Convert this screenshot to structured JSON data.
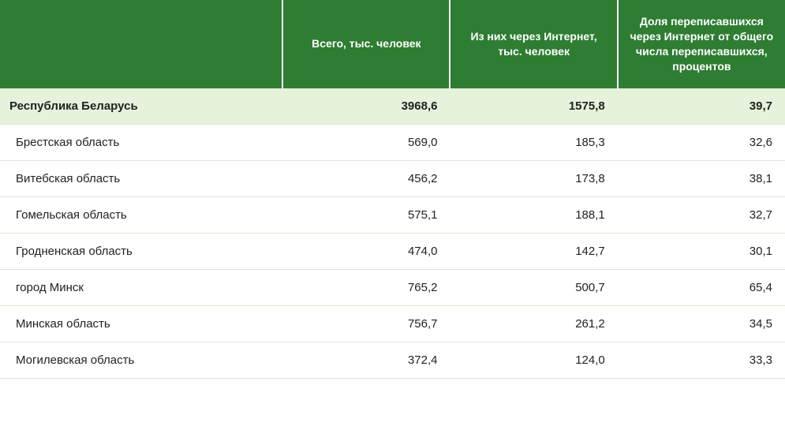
{
  "table": {
    "header_bg": "#2e7d32",
    "header_fg": "#ffffff",
    "total_row_bg": "#e6f2dc",
    "row_border": "#d9e8d5",
    "columns": [
      {
        "label": "",
        "align": "left"
      },
      {
        "label": "Всего, тыс. человек",
        "align": "right"
      },
      {
        "label": "Из них через Интернет, тыс. человек",
        "align": "right"
      },
      {
        "label": "Доля переписавшихся через Интернет от общего числа переписавшихся, процентов",
        "align": "right"
      }
    ],
    "total": {
      "label": "Республика Беларусь",
      "total": "3968,6",
      "internet": "1575,8",
      "share": "39,7"
    },
    "rows": [
      {
        "label": "Брестская область",
        "total": "569,0",
        "internet": "185,3",
        "share": "32,6"
      },
      {
        "label": "Витебская область",
        "total": "456,2",
        "internet": "173,8",
        "share": "38,1"
      },
      {
        "label": "Гомельская область",
        "total": "575,1",
        "internet": "188,1",
        "share": "32,7"
      },
      {
        "label": "Гродненская область",
        "total": "474,0",
        "internet": "142,7",
        "share": "30,1"
      },
      {
        "label": "город Минск",
        "total": "765,2",
        "internet": "500,7",
        "share": "65,4"
      },
      {
        "label": "Минская область",
        "total": "756,7",
        "internet": "261,2",
        "share": "34,5"
      },
      {
        "label": "Могилевская область",
        "total": "372,4",
        "internet": "124,0",
        "share": "33,3"
      }
    ]
  }
}
